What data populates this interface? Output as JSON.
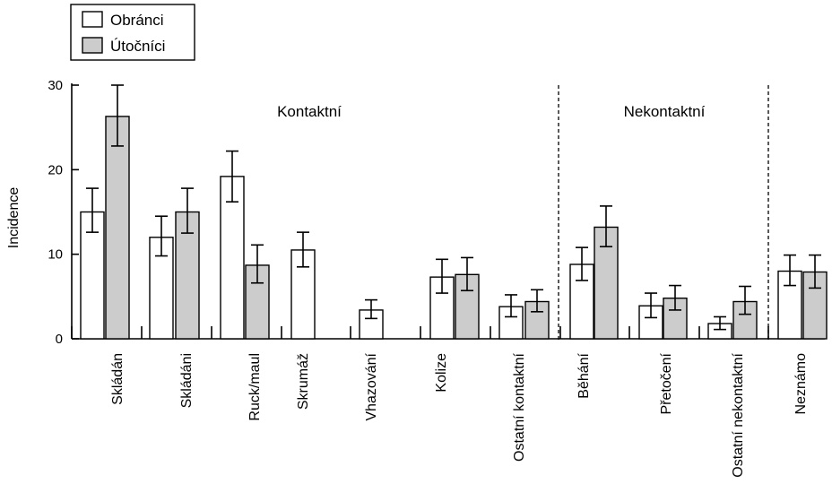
{
  "chart_data": {
    "type": "bar",
    "ylabel": "Incidence",
    "ylim": [
      0,
      30
    ],
    "yticks": [
      0,
      10,
      20,
      30
    ],
    "legend": {
      "placement": "top-left",
      "entries": [
        {
          "label": "Obránci",
          "color": "#ffffff"
        },
        {
          "label": "Útočníci",
          "color": "#cccccc"
        }
      ]
    },
    "groups": [
      {
        "label": "Kontaktní",
        "categories": [
          0,
          1,
          2,
          3,
          4,
          5,
          6
        ]
      },
      {
        "label": "Nekontaktní",
        "categories": [
          7,
          8,
          9
        ]
      },
      {
        "label": "",
        "categories": [
          10
        ]
      }
    ],
    "categories": [
      "Skládán",
      "Skládáni",
      "Ruck/maul",
      "Skrumáž",
      "Vhazování",
      "Kolize",
      "Ostatní kontaktní",
      "Běhání",
      "Přetočení",
      "Ostatní nekontaktní",
      "Neznámo"
    ],
    "series": [
      {
        "name": "Obránci",
        "color": "#ffffff",
        "values": [
          15.0,
          12.0,
          19.2,
          10.5,
          3.4,
          7.3,
          3.8,
          8.8,
          3.9,
          1.8,
          8.0
        ],
        "err_low": [
          12.6,
          9.8,
          16.2,
          8.5,
          2.4,
          5.4,
          2.6,
          6.9,
          2.5,
          1.1,
          6.3
        ],
        "err_high": [
          17.8,
          14.5,
          22.2,
          12.6,
          4.6,
          9.4,
          5.2,
          10.8,
          5.4,
          2.6,
          9.9
        ]
      },
      {
        "name": "Útočníci",
        "color": "#cccccc",
        "values": [
          26.3,
          15.0,
          8.7,
          null,
          null,
          7.6,
          4.4,
          13.2,
          4.8,
          4.4,
          7.9
        ],
        "err_low": [
          22.8,
          12.5,
          6.6,
          null,
          null,
          5.7,
          3.2,
          10.9,
          3.4,
          2.9,
          6.0
        ],
        "err_high": [
          30.0,
          17.8,
          11.1,
          null,
          null,
          9.6,
          5.8,
          15.7,
          6.3,
          6.2,
          9.9
        ]
      }
    ],
    "grid": false
  }
}
